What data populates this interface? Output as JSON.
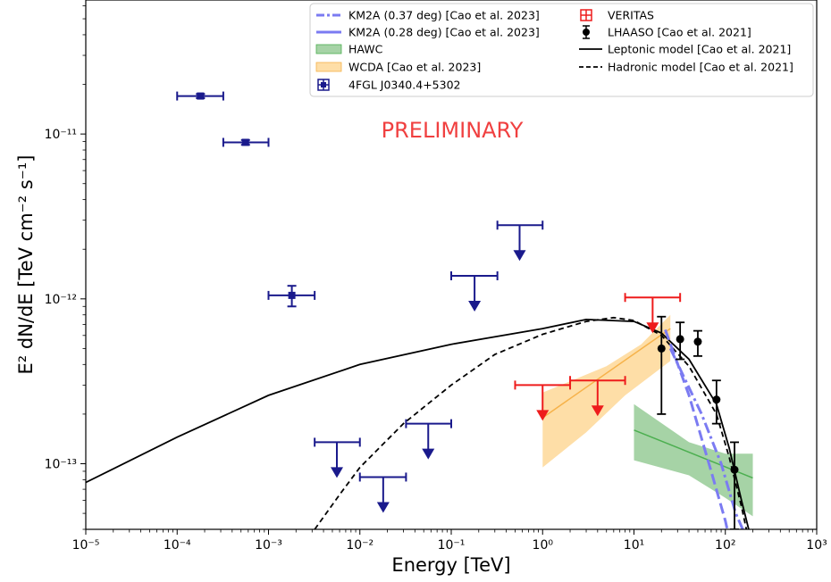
{
  "chart_data": {
    "type": "scatter",
    "title": "",
    "xlabel": "Energy [TeV]",
    "ylabel": "E² dN/dE [TeV cm⁻² s⁻¹]",
    "xscale": "log",
    "yscale": "log",
    "xlim": [
      1e-05,
      1000
    ],
    "ylim": [
      4e-14,
      6.5e-11
    ],
    "grid": false,
    "legend_position": "top-right",
    "watermark": "PRELIMINARY",
    "x_ticks": [
      "10⁻⁵",
      "10⁻⁴",
      "10⁻³",
      "10⁻²",
      "10⁻¹",
      "10⁰",
      "10¹",
      "10²",
      "10³"
    ],
    "y_ticks": [
      "10⁻¹³",
      "10⁻¹²",
      "10⁻¹¹"
    ],
    "colors": {
      "fermi": "#1a1a8c",
      "veritas": "#ee1c1c",
      "lhaaso": "#000000",
      "km2a": "#7b7bf2",
      "hawc_line": "#4caf50",
      "hawc_band": "#80c080",
      "wcda_line": "#f6b24a",
      "wcda_band": "#fdd38a",
      "watermark": "#f04040"
    },
    "legend": [
      {
        "key": "km2a037",
        "label": "KM2A (0.37 deg) [Cao et al. 2023]"
      },
      {
        "key": "km2a028",
        "label": "KM2A (0.28 deg) [Cao et al. 2023]"
      },
      {
        "key": "hawc",
        "label": "HAWC"
      },
      {
        "key": "wcda",
        "label": "WCDA [Cao et al. 2023]"
      },
      {
        "key": "fermi",
        "label": "4FGL J0340.4+5302"
      },
      {
        "key": "veritas",
        "label": "VERITAS"
      },
      {
        "key": "lhaaso",
        "label": "LHAASO [Cao et al. 2021]"
      },
      {
        "key": "lep",
        "label": "Leptonic model [Cao et al. 2021]"
      },
      {
        "key": "had",
        "label": "Hadronic model [Cao et al. 2021]"
      }
    ],
    "series": {
      "fermi_points": [
        {
          "x": 0.00018,
          "xlo": 0.0001,
          "xhi": 0.00032,
          "y": 1.7e-11,
          "ylo": 1.65e-11,
          "yhi": 1.75e-11
        },
        {
          "x": 0.00056,
          "xlo": 0.00032,
          "xhi": 0.001,
          "y": 8.9e-12,
          "ylo": 8.6e-12,
          "yhi": 9.2e-12
        },
        {
          "x": 0.0018,
          "xlo": 0.001,
          "xhi": 0.0032,
          "y": 1.05e-12,
          "ylo": 9e-13,
          "yhi": 1.2e-12
        }
      ],
      "fermi_upper_limits": [
        {
          "x": 0.0056,
          "xlo": 0.0032,
          "xhi": 0.01,
          "y": 1.35e-13
        },
        {
          "x": 0.018,
          "xlo": 0.01,
          "xhi": 0.032,
          "y": 8.3e-14
        },
        {
          "x": 0.056,
          "xlo": 0.032,
          "xhi": 0.1,
          "y": 1.75e-13
        },
        {
          "x": 0.18,
          "xlo": 0.1,
          "xhi": 0.32,
          "y": 1.38e-12
        },
        {
          "x": 0.56,
          "xlo": 0.32,
          "xhi": 1.0,
          "y": 2.8e-12
        }
      ],
      "veritas_upper_limits": [
        {
          "x": 1.0,
          "xlo": 0.5,
          "xhi": 2.0,
          "y": 3e-13
        },
        {
          "x": 4.0,
          "xlo": 2.0,
          "xhi": 8.0,
          "y": 3.2e-13
        },
        {
          "x": 16.0,
          "xlo": 8.0,
          "xhi": 32.0,
          "y": 1.02e-12
        }
      ],
      "lhaaso_points": [
        {
          "x": 20,
          "y": 5e-13,
          "ylo": 2e-13,
          "yhi": 7.8e-13
        },
        {
          "x": 32,
          "y": 5.7e-13,
          "ylo": 4.3e-13,
          "yhi": 7.2e-13
        },
        {
          "x": 50,
          "y": 5.5e-13,
          "ylo": 4.5e-13,
          "yhi": 6.4e-13
        },
        {
          "x": 80,
          "y": 2.45e-13,
          "ylo": 1.75e-13,
          "yhi": 3.2e-13
        },
        {
          "x": 126,
          "y": 9.2e-14,
          "ylo": 4e-14,
          "yhi": 1.35e-13
        }
      ],
      "leptonic_model": [
        [
          1e-05,
          7.7e-14
        ],
        [
          0.0001,
          1.45e-13
        ],
        [
          0.001,
          2.6e-13
        ],
        [
          0.01,
          4e-13
        ],
        [
          0.1,
          5.3e-13
        ],
        [
          1.0,
          6.6e-13
        ],
        [
          3.0,
          7.5e-13
        ],
        [
          10,
          7.3e-13
        ],
        [
          20,
          6.2e-13
        ],
        [
          40,
          4.3e-13
        ],
        [
          80,
          2.3e-13
        ],
        [
          110,
          1.25e-13
        ],
        [
          150,
          6e-14
        ],
        [
          180,
          4e-14
        ]
      ],
      "hadronic_model": [
        [
          0.0032,
          4e-14
        ],
        [
          0.006,
          6.5e-14
        ],
        [
          0.01,
          9.5e-14
        ],
        [
          0.03,
          1.75e-13
        ],
        [
          0.1,
          3e-13
        ],
        [
          0.3,
          4.6e-13
        ],
        [
          1.0,
          6.1e-13
        ],
        [
          3.0,
          7.3e-13
        ],
        [
          6.0,
          7.7e-13
        ],
        [
          10,
          7.4e-13
        ],
        [
          20,
          6e-13
        ],
        [
          40,
          3.9e-13
        ],
        [
          80,
          2e-13
        ],
        [
          110,
          1.1e-13
        ],
        [
          150,
          5.5e-14
        ],
        [
          170,
          4e-14
        ]
      ],
      "wcda_line": [
        [
          1.0,
          1.9e-13
        ],
        [
          25,
          6.6e-13
        ]
      ],
      "wcda_band_upper": [
        [
          1.0,
          2.7e-13
        ],
        [
          5,
          3.9e-13
        ],
        [
          12,
          5.3e-13
        ],
        [
          25,
          8e-13
        ]
      ],
      "wcda_band_lower": [
        [
          25,
          4.2e-13
        ],
        [
          8,
          2.6e-13
        ],
        [
          3,
          1.55e-13
        ],
        [
          1.0,
          9.5e-14
        ]
      ],
      "hawc_line": [
        [
          10,
          1.6e-13
        ],
        [
          200,
          8.2e-14
        ]
      ],
      "hawc_band_upper": [
        [
          10,
          2.3e-13
        ],
        [
          40,
          1.35e-13
        ],
        [
          100,
          1.15e-13
        ],
        [
          200,
          1.15e-13
        ]
      ],
      "hawc_band_lower": [
        [
          200,
          4.8e-14
        ],
        [
          100,
          6.2e-14
        ],
        [
          40,
          8.5e-14
        ],
        [
          10,
          1.05e-13
        ]
      ],
      "km2a_037": [
        [
          25,
          5e-13
        ],
        [
          55,
          2e-13
        ],
        [
          90,
          1e-13
        ],
        [
          130,
          5e-14
        ],
        [
          155,
          4e-14
        ]
      ],
      "km2a_028": [
        [
          22,
          6.5e-13
        ],
        [
          40,
          2.6e-13
        ],
        [
          70,
          9e-14
        ],
        [
          100,
          4.5e-14
        ],
        [
          105,
          4e-14
        ]
      ]
    }
  }
}
